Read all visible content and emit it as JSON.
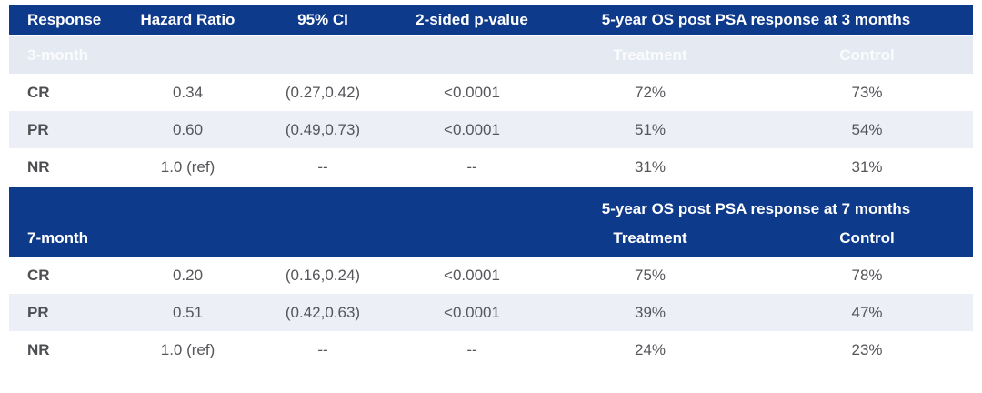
{
  "theme": {
    "header_bg": "#0e3a8c",
    "header_text": "#ffffff",
    "subheader_bg": "#e5e9f2",
    "subheader_text": "#fafbfd",
    "row_alt_bg": "#eceff5",
    "row_bg": "#ffffff",
    "body_text": "#55565a",
    "label_text": "#4d4e52"
  },
  "chart_data": {
    "type": "table",
    "columns": [
      "Response",
      "Hazard Ratio",
      "95% CI",
      "2-sided p-value"
    ],
    "os_header_3m": "5-year OS post PSA response at 3 months",
    "os_header_7m": "5-year OS post PSA response at 7 months",
    "arm_headers": {
      "treatment": "Treatment",
      "control": "Control"
    },
    "sections": [
      {
        "label": "3-month",
        "rows": [
          {
            "response": "CR",
            "hr": "0.34",
            "ci": "(0.27,0.42)",
            "p": "<0.0001",
            "treatment": "72%",
            "control": "73%"
          },
          {
            "response": "PR",
            "hr": "0.60",
            "ci": "(0.49,0.73)",
            "p": "<0.0001",
            "treatment": "51%",
            "control": "54%"
          },
          {
            "response": "NR",
            "hr": "1.0 (ref)",
            "ci": "--",
            "p": "--",
            "treatment": "31%",
            "control": "31%"
          }
        ]
      },
      {
        "label": "7-month",
        "rows": [
          {
            "response": "CR",
            "hr": "0.20",
            "ci": "(0.16,0.24)",
            "p": "<0.0001",
            "treatment": "75%",
            "control": "78%"
          },
          {
            "response": "PR",
            "hr": "0.51",
            "ci": "(0.42,0.63)",
            "p": "<0.0001",
            "treatment": "39%",
            "control": "47%"
          },
          {
            "response": "NR",
            "hr": "1.0 (ref)",
            "ci": "--",
            "p": "--",
            "treatment": "24%",
            "control": "23%"
          }
        ]
      }
    ]
  }
}
